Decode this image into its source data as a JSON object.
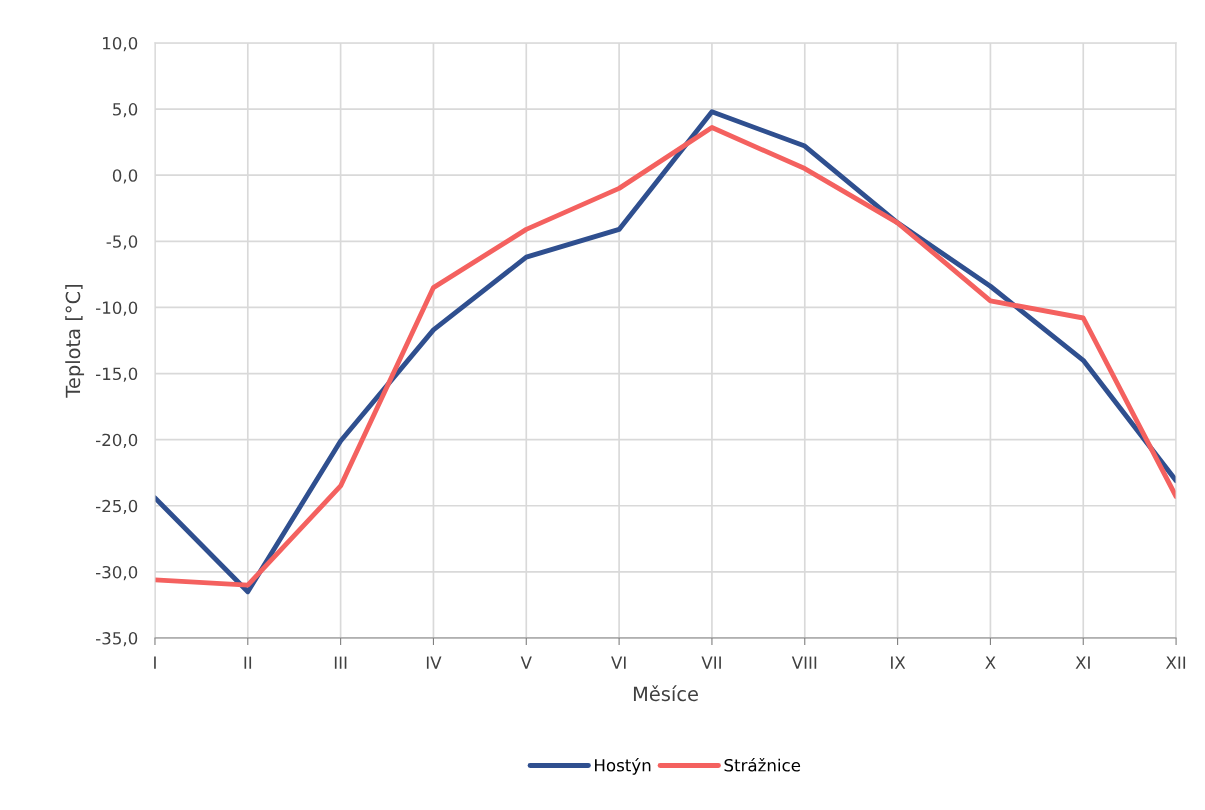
{
  "chart_data": {
    "type": "line",
    "xlabel": "Měsíce",
    "ylabel": "Teplota [°C]",
    "categories": [
      "I",
      "II",
      "III",
      "IV",
      "V",
      "VI",
      "VII",
      "VIII",
      "IX",
      "X",
      "XI",
      "XII"
    ],
    "series": [
      {
        "name": "Hostýn",
        "color": "#2f4f8f",
        "values": [
          -24.4,
          -31.5,
          -20.1,
          -11.7,
          -6.2,
          -4.1,
          4.8,
          2.2,
          -3.6,
          -8.4,
          -14.0,
          -23.1
        ]
      },
      {
        "name": "Strážnice",
        "color": "#f4615f",
        "values": [
          -30.6,
          -31.0,
          -23.5,
          -8.5,
          -4.1,
          -1.0,
          3.6,
          0.5,
          -3.6,
          -9.5,
          -10.8,
          -24.3
        ]
      }
    ],
    "ylim": [
      -35,
      10
    ],
    "yticks": [
      {
        "value": -35,
        "label": "-35,0"
      },
      {
        "value": -30,
        "label": "-30,0"
      },
      {
        "value": -25,
        "label": "-25,0"
      },
      {
        "value": -20,
        "label": "-20,0"
      },
      {
        "value": -15,
        "label": "-15,0"
      },
      {
        "value": -10,
        "label": "-10,0"
      },
      {
        "value": -5,
        "label": "-5,0"
      },
      {
        "value": 0,
        "label": "0,0"
      },
      {
        "value": 5,
        "label": "5,0"
      },
      {
        "value": 10,
        "label": "10,0"
      }
    ],
    "grid": true,
    "legend": "bottom",
    "marker": "none",
    "line_style": "solid"
  }
}
